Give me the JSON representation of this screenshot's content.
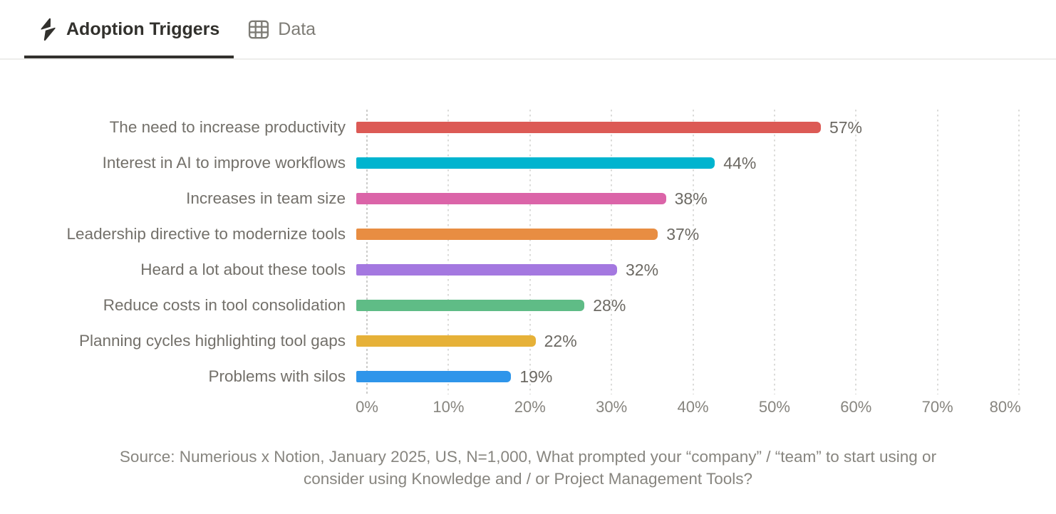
{
  "header": {
    "tabs": [
      {
        "label": "Adoption Triggers",
        "icon": "lightning-bolt-icon",
        "active": true
      },
      {
        "label": "Data",
        "icon": "table-icon",
        "active": false
      }
    ]
  },
  "chart_data": {
    "type": "bar",
    "orientation": "horizontal",
    "title": "Adoption Triggers",
    "categories": [
      "The need to increase productivity",
      "Interest in AI to improve workflows",
      "Increases in team size",
      "Leadership directive to modernize tools",
      "Heard a lot about these tools",
      "Reduce costs in tool consolidation",
      "Planning cycles highlighting tool gaps",
      "Problems with silos"
    ],
    "values": [
      57,
      44,
      38,
      37,
      32,
      28,
      22,
      19
    ],
    "unit": "%",
    "bar_colors": [
      "#DC5A55",
      "#00B4CF",
      "#DB64A8",
      "#E88D42",
      "#A478E0",
      "#5FBC86",
      "#E6B138",
      "#2E95EA"
    ],
    "xlim": [
      0,
      80
    ],
    "x_ticks": [
      "0%",
      "10%",
      "20%",
      "30%",
      "40%",
      "50%",
      "60%",
      "70%",
      "80%"
    ],
    "grid": "vertical-dotted",
    "legend": "none",
    "xlabel": "",
    "ylabel": "",
    "source_lines": [
      "Source: Numerious x Notion, January 2025, US, N=1,000, What prompted your “company” / “team” to start using or",
      "consider using Knowledge and / or Project Management Tools?"
    ]
  }
}
